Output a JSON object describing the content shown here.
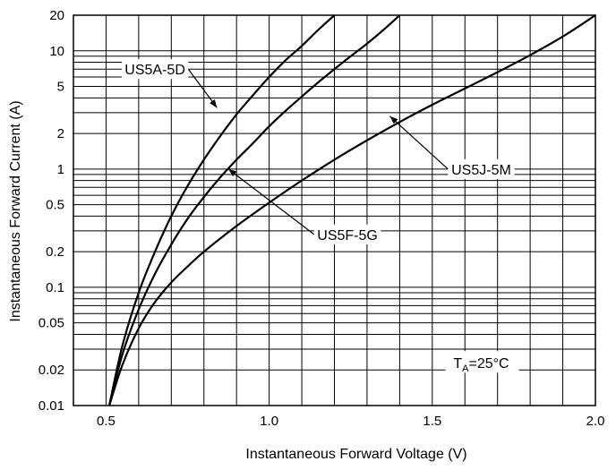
{
  "chart_data": {
    "type": "line",
    "title": "",
    "xlabel": "Instantaneous Forward Voltage (V)",
    "ylabel": "Instantaneous Forward Current (A)",
    "xlim": [
      0.4,
      2.0
    ],
    "ylim": [
      0.01,
      20
    ],
    "yscale": "log",
    "grid": true,
    "x_ticks": [
      {
        "value": 0.5,
        "label": "0.5"
      },
      {
        "value": 1.0,
        "label": "1.0"
      },
      {
        "value": 1.5,
        "label": "1.5"
      },
      {
        "value": 2.0,
        "label": "2.0"
      }
    ],
    "y_ticks": [
      {
        "value": 0.01,
        "label": "0.01"
      },
      {
        "value": 0.02,
        "label": "0.02"
      },
      {
        "value": 0.05,
        "label": "0.05"
      },
      {
        "value": 0.1,
        "label": "0.1"
      },
      {
        "value": 0.2,
        "label": "0.2"
      },
      {
        "value": 0.5,
        "label": "0.5"
      },
      {
        "value": 1,
        "label": "1"
      },
      {
        "value": 2,
        "label": "2"
      },
      {
        "value": 5,
        "label": "5"
      },
      {
        "value": 10,
        "label": "10"
      },
      {
        "value": 20,
        "label": "20"
      }
    ],
    "series": [
      {
        "name": "US5A-5D",
        "x": [
          0.51,
          0.55,
          0.6,
          0.65,
          0.7,
          0.75,
          0.8,
          0.85,
          0.9,
          0.95,
          1.0,
          1.05,
          1.1,
          1.15,
          1.2
        ],
        "y": [
          0.01,
          0.032,
          0.09,
          0.2,
          0.4,
          0.72,
          1.2,
          1.9,
          2.9,
          4.2,
          6.0,
          8.3,
          11.0,
          15.0,
          20.0
        ]
      },
      {
        "name": "US5F-5G",
        "x": [
          0.51,
          0.55,
          0.6,
          0.65,
          0.7,
          0.75,
          0.8,
          0.85,
          0.9,
          0.95,
          1.0,
          1.05,
          1.1,
          1.15,
          1.2,
          1.25,
          1.3,
          1.35,
          1.4
        ],
        "y": [
          0.01,
          0.027,
          0.065,
          0.13,
          0.23,
          0.38,
          0.58,
          0.85,
          1.2,
          1.65,
          2.3,
          3.1,
          4.1,
          5.4,
          7.0,
          9.0,
          11.5,
          15.0,
          20.0
        ]
      },
      {
        "name": "US5J-5M",
        "x": [
          0.51,
          0.55,
          0.6,
          0.65,
          0.7,
          0.75,
          0.8,
          0.9,
          1.0,
          1.1,
          1.2,
          1.3,
          1.4,
          1.5,
          1.6,
          1.7,
          1.8,
          1.9,
          2.0
        ],
        "y": [
          0.01,
          0.022,
          0.045,
          0.075,
          0.11,
          0.15,
          0.2,
          0.33,
          0.52,
          0.8,
          1.2,
          1.75,
          2.5,
          3.5,
          4.8,
          6.6,
          9.2,
          13.2,
          20.0
        ]
      }
    ],
    "series_labels": [
      {
        "text": "US5A-5D",
        "label_x": 0.65,
        "label_y": 7.0,
        "arrow_x": 0.84,
        "arrow_y": 3.3
      },
      {
        "text": "US5F-5G",
        "label_x": 1.24,
        "label_y": 0.28,
        "arrow_x": 0.875,
        "arrow_y": 1.0
      },
      {
        "text": "US5J-5M",
        "label_x": 1.65,
        "label_y": 1.0,
        "arrow_x": 1.37,
        "arrow_y": 2.8
      }
    ],
    "annotations": [
      {
        "main": "T",
        "sub": "A",
        "rest": "=25°C",
        "x": 1.65,
        "y": 0.023
      }
    ],
    "colors": {
      "line": "#000000",
      "grid": "#000000",
      "background": "#ffffff"
    }
  }
}
